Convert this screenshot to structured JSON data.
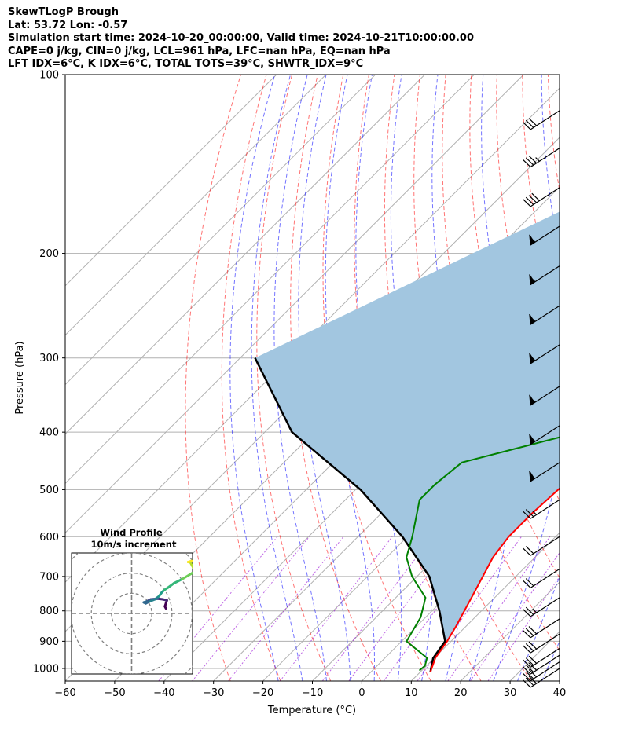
{
  "header": {
    "title": "SkewTLogP Brough",
    "location": "Lat: 53.72   Lon: -0.57",
    "times": "Simulation start time: 2024-10-20_00:00:00, Valid time: 2024-10-21T10:00:00.00",
    "indices1": "CAPE=0 j/kg, CIN=0 j/kg, LCL=961 hPa, LFC=nan hPa, EQ=nan hPa",
    "indices2": "LFT IDX=6$^\\circ$C, K IDX=6$^\\circ$C, TOTAL TOTS=39$^\\circ$C, SHWTR_IDX=9$^\\circ$C"
  },
  "chart_data": [
    {
      "type": "line",
      "subtype": "skew-t log-p",
      "xlabel": "Temperature ($^\\circ$C)",
      "ylabel": "Pressure (hPa)",
      "xlim": [
        -60,
        40
      ],
      "ylim": [
        1050,
        100
      ],
      "yscale": "log",
      "grid": true,
      "xticks": [
        -60,
        -50,
        -40,
        -30,
        -20,
        -10,
        0,
        10,
        20,
        30,
        40
      ],
      "yticks": [
        1000,
        900,
        800,
        700,
        600,
        500,
        400,
        300,
        200,
        100
      ],
      "colors": {
        "temperature": "#ff0000",
        "dewpoint": "#008000",
        "parcel": "#000000",
        "shade": "#a2c6e0",
        "dry_adiabat": "#ff0000",
        "moist_adiabat": "#0000ff",
        "mixing_ratio": "#9400d3"
      },
      "series": [
        {
          "role": "temperature",
          "x": [
            12.0,
            10.2,
            9.2,
            8.0,
            5.0,
            1.5,
            0.5,
            0.5,
            1.0,
            1.5,
            1.0,
            -1.0,
            -6.0,
            -7.5,
            -8.5,
            -9.0,
            -9.0,
            -8.5,
            -11.0,
            -16.0,
            -24.0,
            -25.0
          ],
          "p": [
            1013,
            960,
            900,
            850,
            750,
            650,
            600,
            550,
            500,
            450,
            400,
            350,
            300,
            265,
            240,
            215,
            195,
            180,
            160,
            140,
            118,
            100
          ]
        },
        {
          "role": "dewpoint",
          "x": [
            9.5,
            9.7,
            8.5,
            1.0,
            -1.0,
            -4.0,
            -11.0,
            -16.0,
            -19.0,
            -25.0,
            -25.0,
            -24.0,
            -2.5,
            -4.0,
            -12.0,
            -16.0,
            -20.0,
            -23.0,
            -28.0,
            -30.5,
            -34.0,
            -34.0,
            -31.0,
            -24.0
          ],
          "p": [
            1008,
            990,
            960,
            900,
            820,
            760,
            700,
            650,
            600,
            520,
            490,
            450,
            390,
            370,
            300,
            265,
            245,
            225,
            200,
            185,
            165,
            150,
            140,
            100
          ]
        },
        {
          "role": "parcel",
          "x": [
            12.0,
            9.8,
            8.8,
            1.5,
            -7.5,
            -21.0,
            -39.0,
            -64.5,
            -87.0
          ],
          "p": [
            1013,
            961,
            900,
            800,
            700,
            600,
            500,
            400,
            300
          ]
        }
      ],
      "winds": [
        {
          "p": 1000,
          "speed_kt": 30
        },
        {
          "p": 975,
          "speed_kt": 30
        },
        {
          "p": 950,
          "speed_kt": 30
        },
        {
          "p": 925,
          "speed_kt": 30
        },
        {
          "p": 875,
          "speed_kt": 30
        },
        {
          "p": 825,
          "speed_kt": 30
        },
        {
          "p": 760,
          "speed_kt": 25
        },
        {
          "p": 680,
          "speed_kt": 20
        },
        {
          "p": 600,
          "speed_kt": 20
        },
        {
          "p": 520,
          "speed_kt": 25
        },
        {
          "p": 450,
          "speed_kt": 50
        },
        {
          "p": 390,
          "speed_kt": 55
        },
        {
          "p": 335,
          "speed_kt": 55
        },
        {
          "p": 285,
          "speed_kt": 55
        },
        {
          "p": 245,
          "speed_kt": 55
        },
        {
          "p": 210,
          "speed_kt": 55
        },
        {
          "p": 180,
          "speed_kt": 55
        },
        {
          "p": 155,
          "speed_kt": 40
        },
        {
          "p": 133,
          "speed_kt": 35
        },
        {
          "p": 115,
          "speed_kt": 30
        }
      ]
    },
    {
      "type": "line",
      "subtype": "hodograph",
      "title": "Wind Profile",
      "subtitle": "10m/s increment",
      "rings_m_s": [
        10,
        20,
        30,
        40
      ],
      "xlim": [
        -30,
        30
      ],
      "ylim": [
        -30,
        30
      ],
      "u": [
        17,
        16.5,
        17,
        17.5,
        15.5,
        13,
        9.5,
        7.5,
        6,
        7,
        9,
        11.5,
        13.5,
        15,
        16,
        18,
        21,
        25,
        30,
        32,
        29,
        28,
        29.5,
        31
      ],
      "v": [
        2.5,
        3.5,
        5,
        6.5,
        7,
        7.3,
        7,
        6,
        5.5,
        5,
        6,
        7,
        8.5,
        10.5,
        11.5,
        12.8,
        15,
        17,
        20,
        20,
        25.5,
        25.5,
        26,
        26
      ],
      "colors": [
        "#440154",
        "#482878",
        "#3e4989",
        "#31688e",
        "#26828e",
        "#1f9e89",
        "#35b779",
        "#6ece58",
        "#b5de2b",
        "#fde725"
      ]
    }
  ]
}
